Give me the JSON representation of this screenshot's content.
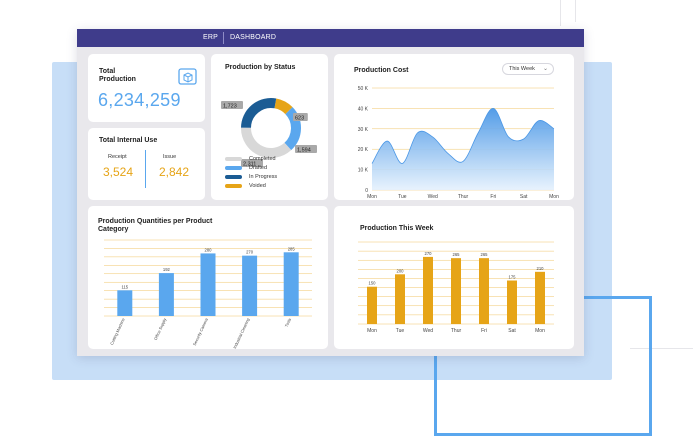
{
  "topbar": {
    "app": "ERP",
    "section": "DASHBOARD"
  },
  "total_production": {
    "title": "Total Production",
    "value": "6,234,259",
    "icon": "box-icon"
  },
  "total_internal_use": {
    "title": "Total Internal Use",
    "receipt_label": "Receipt",
    "receipt_value": "3,524",
    "issue_label": "Issue",
    "issue_value": "2,842"
  },
  "production_by_status": {
    "title": "Production by Status",
    "callouts": [
      "1,723",
      "623",
      "1,594",
      "2,311"
    ],
    "legend": [
      {
        "label": "Completed",
        "color": "#d8d8d8"
      },
      {
        "label": "Drafted",
        "color": "#5aa7ee"
      },
      {
        "label": "In Progress",
        "color": "#1b5c94"
      },
      {
        "label": "Voided",
        "color": "#e6a417"
      }
    ]
  },
  "production_cost": {
    "title": "Production Cost",
    "period": "This Week"
  },
  "production_quantities": {
    "title": "Production Quantities per Product Category"
  },
  "production_this_week": {
    "title": "Production This Week"
  },
  "chart_data": [
    {
      "type": "pie",
      "title": "Production by Status",
      "labels": [
        "Completed",
        "Drafted",
        "In Progress",
        "Voided"
      ],
      "values": [
        2311,
        1594,
        1723,
        623
      ],
      "colors": [
        "#d8d8d8",
        "#5aa7ee",
        "#1b5c94",
        "#e6a417"
      ]
    },
    {
      "type": "area",
      "title": "Production Cost",
      "categories": [
        "Mon",
        "Tue",
        "Wed",
        "Thur",
        "Fri",
        "Sat",
        "Mon"
      ],
      "y_ticks": [
        "0",
        "10 K",
        "20 K",
        "30 K",
        "40 K",
        "50 K"
      ],
      "ylim": [
        0,
        50000
      ],
      "x": [
        0,
        0.5,
        1,
        1.5,
        2,
        2.5,
        3,
        3.5,
        4,
        4.5,
        5,
        5.5,
        6
      ],
      "values": [
        13000,
        24000,
        13000,
        28000,
        26000,
        18000,
        14000,
        28000,
        40000,
        26000,
        25000,
        34000,
        30000
      ],
      "color": "#5aa7ee",
      "grid": true
    },
    {
      "type": "bar",
      "title": "Production Quantities per Product Category",
      "categories": [
        "Cutting Machine",
        "Office Supply",
        "Security Camera",
        "Industrial Cleaning",
        "Tools"
      ],
      "values": [
        115,
        192,
        280,
        270,
        285
      ],
      "value_labels": [
        "115",
        "192",
        "280",
        "270",
        "285"
      ],
      "ylim": [
        0,
        340
      ],
      "color": "#5aa7ee",
      "grid": true
    },
    {
      "type": "bar",
      "title": "Production This Week",
      "categories": [
        "Mon",
        "Tue",
        "Wed",
        "Thur",
        "Fri",
        "Sat",
        "Mon"
      ],
      "values": [
        150,
        200,
        270,
        265,
        265,
        175,
        210
      ],
      "value_labels": [
        "150",
        "200",
        "270",
        "265",
        "265",
        "175",
        "210"
      ],
      "ylim": [
        0,
        330
      ],
      "color": "#e6a417",
      "grid": true
    }
  ]
}
